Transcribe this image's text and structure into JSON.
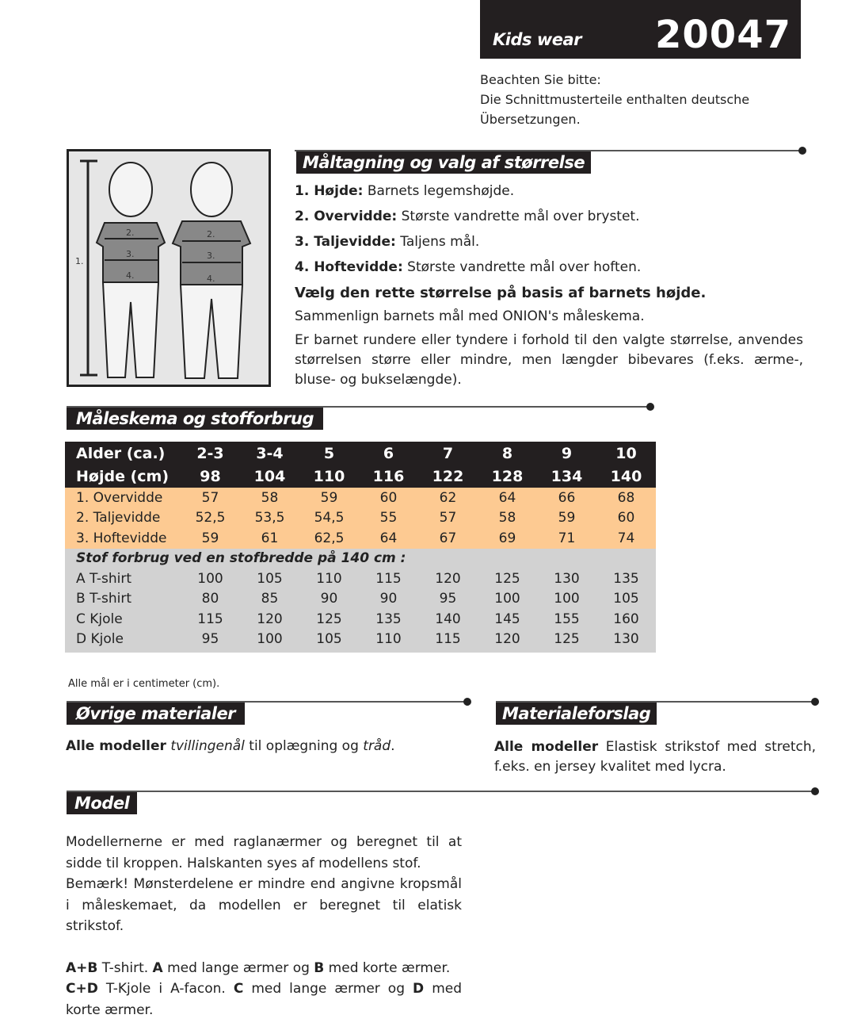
{
  "brand": {
    "category": "Kids wear",
    "number": "20047"
  },
  "note": [
    "Beachten Sie bitte:",
    "Die Schnittmusterteile enthalten deutsche",
    "Übersetzungen."
  ],
  "illustration": {
    "labels": [
      "1.",
      "2.",
      "3.",
      "4."
    ]
  },
  "measuring": {
    "title": "Måltagning og valg af størrelse",
    "items": [
      {
        "term": "1. Højde:",
        "desc": " Barnets legemshøjde."
      },
      {
        "term": "2. Overvidde:",
        "desc": " Største vandrette mål over brystet."
      },
      {
        "term": "3. Taljevidde:",
        "desc": " Taljens mål."
      },
      {
        "term": "4. Hoftevidde:",
        "desc": " Største vandrette mål over hoften."
      }
    ],
    "bold_line": "Vælg den rette størrelse på basis af barnets højde.",
    "p1": "Sammenlign barnets mål med ONION's måleskema.",
    "p2": "Er barnet rundere eller tyndere i forhold til den valgte størrelse, anvendes størrelsen større eller mindre, men længder bibevares (f.eks. ærme-, bluse- og bukselængde)."
  },
  "chart_table": {
    "title": "Måleskema og stofforbrug",
    "header": [
      [
        "Alder (ca.)",
        "2-3",
        "3-4",
        "5",
        "6",
        "7",
        "8",
        "9",
        "10"
      ],
      [
        "Højde (cm)",
        "98",
        "104",
        "110",
        "116",
        "122",
        "128",
        "134",
        "140"
      ]
    ],
    "measures": [
      [
        "1. Overvidde",
        "57",
        "58",
        "59",
        "60",
        "62",
        "64",
        "66",
        "68"
      ],
      [
        "2. Taljevidde",
        "52,5",
        "53,5",
        "54,5",
        "55",
        "57",
        "58",
        "59",
        "60"
      ],
      [
        "3. Hoftevidde",
        "59",
        "61",
        "62,5",
        "64",
        "67",
        "69",
        "71",
        "74"
      ]
    ],
    "fabric_title": "Stof forbrug ved en stofbredde på 140 cm :",
    "fabric": [
      [
        "A T-shirt",
        "100",
        "105",
        "110",
        "115",
        "120",
        "125",
        "130",
        "135"
      ],
      [
        "B T-shirt",
        "80",
        "85",
        "90",
        "90",
        "95",
        "100",
        "100",
        "105"
      ],
      [
        "C Kjole",
        "115",
        "120",
        "125",
        "135",
        "140",
        "145",
        "155",
        "160"
      ],
      [
        "D Kjole",
        "95",
        "100",
        "105",
        "110",
        "115",
        "120",
        "125",
        "130"
      ]
    ],
    "footnote": "Alle mål er i centimeter (cm).",
    "colors": {
      "header": "#231f20",
      "measures": "#fdca92",
      "fabric": "#d2d2d2"
    }
  },
  "materials": {
    "title": "Øvrige materialer",
    "bold": "Alle modeller",
    "t1": " tvillingenål",
    "t2": " til oplægning og ",
    "t3": "tråd",
    "t4": "."
  },
  "suggestion": {
    "title": "Materialeforslag",
    "bold": "Alle modeller",
    "text": " Elastisk strikstof med stretch, f.eks. en jersey kvalitet med lycra."
  },
  "model": {
    "title": "Model",
    "p1": "Modellernerne er med raglanærmer og beregnet til at sidde til kroppen. Halskanten syes af modellens stof.",
    "p2": "Bemærk! Mønsterdelene er mindre end angivne kropsmål i måleskemaet, da modellen er beregnet til elatisk strikstof.",
    "l1": {
      "a": "A+B",
      "b": " T-shirt. ",
      "c": "A",
      "d": " med lange ærmer og ",
      "e": "B",
      "f": " med korte ærmer."
    },
    "l2": {
      "a": "C+D",
      "b": " T-Kjole i A-facon. ",
      "c": "C",
      "d": " med lange ærmer og ",
      "e": "D",
      "f": " med korte ærmer."
    }
  }
}
